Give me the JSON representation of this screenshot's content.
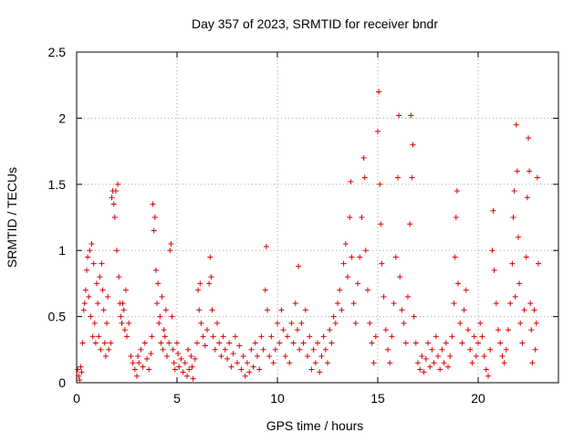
{
  "chart_data": {
    "type": "scatter",
    "title": "Day 357 of 2023, SRMTID for receiver bndr",
    "xlabel": "GPS time / hours",
    "ylabel": "SRMTID / TECUs",
    "xlim": [
      0,
      24
    ],
    "ylim": [
      0,
      2.5
    ],
    "xticks": [
      0,
      5,
      10,
      15,
      20
    ],
    "xtick_labels": [
      "0",
      "5",
      "10",
      "15",
      "20"
    ],
    "yticks": [
      0,
      0.5,
      1,
      1.5,
      2,
      2.5
    ],
    "ytick_labels": [
      "0",
      "0.5",
      "1",
      "1.5",
      "2",
      "2.5"
    ],
    "grid": true,
    "marker": "+",
    "series": [
      {
        "name": "SRMTID",
        "color": "#e00000",
        "points": [
          [
            0.05,
            0.1
          ],
          [
            0.1,
            0.05
          ],
          [
            0.15,
            0.02
          ],
          [
            0.2,
            0.12
          ],
          [
            0.25,
            0.08
          ],
          [
            0.3,
            0.3
          ],
          [
            0.35,
            0.55
          ],
          [
            0.4,
            0.6
          ],
          [
            0.45,
            0.7
          ],
          [
            0.5,
            0.85
          ],
          [
            0.55,
            0.95
          ],
          [
            0.6,
            0.65
          ],
          [
            0.65,
            1.0
          ],
          [
            0.7,
            0.5
          ],
          [
            0.75,
            1.05
          ],
          [
            0.8,
            0.35
          ],
          [
            0.85,
            0.9
          ],
          [
            0.9,
            0.45
          ],
          [
            0.95,
            0.3
          ],
          [
            1.0,
            0.75
          ],
          [
            1.05,
            0.6
          ],
          [
            1.1,
            0.35
          ],
          [
            1.15,
            0.8
          ],
          [
            1.2,
            0.25
          ],
          [
            1.25,
            0.9
          ],
          [
            1.3,
            0.7
          ],
          [
            1.35,
            0.55
          ],
          [
            1.4,
            0.3
          ],
          [
            1.45,
            0.2
          ],
          [
            1.5,
            0.45
          ],
          [
            1.55,
            0.65
          ],
          [
            1.6,
            0.25
          ],
          [
            1.7,
            0.3
          ],
          [
            1.75,
            1.4
          ],
          [
            1.8,
            1.45
          ],
          [
            1.85,
            1.35
          ],
          [
            1.9,
            1.25
          ],
          [
            1.95,
            1.45
          ],
          [
            2.0,
            1.0
          ],
          [
            2.05,
            1.5
          ],
          [
            2.1,
            0.8
          ],
          [
            2.15,
            0.6
          ],
          [
            2.2,
            0.5
          ],
          [
            2.25,
            0.45
          ],
          [
            2.3,
            0.6
          ],
          [
            2.35,
            0.55
          ],
          [
            2.4,
            0.4
          ],
          [
            2.45,
            0.7
          ],
          [
            2.5,
            0.35
          ],
          [
            2.6,
            0.45
          ],
          [
            2.7,
            0.2
          ],
          [
            2.8,
            0.15
          ],
          [
            2.9,
            0.1
          ],
          [
            3.0,
            0.05
          ],
          [
            3.05,
            0.2
          ],
          [
            3.1,
            0.15
          ],
          [
            3.2,
            0.25
          ],
          [
            3.3,
            0.12
          ],
          [
            3.4,
            0.3
          ],
          [
            3.5,
            0.18
          ],
          [
            3.6,
            0.1
          ],
          [
            3.7,
            0.22
          ],
          [
            3.75,
            0.35
          ],
          [
            3.8,
            1.35
          ],
          [
            3.85,
            1.15
          ],
          [
            3.9,
            1.25
          ],
          [
            3.95,
            0.85
          ],
          [
            4.0,
            0.6
          ],
          [
            4.05,
            0.75
          ],
          [
            4.1,
            0.45
          ],
          [
            4.15,
            0.5
          ],
          [
            4.2,
            0.3
          ],
          [
            4.25,
            0.65
          ],
          [
            4.3,
            0.25
          ],
          [
            4.35,
            0.4
          ],
          [
            4.4,
            0.35
          ],
          [
            4.45,
            0.55
          ],
          [
            4.5,
            0.2
          ],
          [
            4.6,
            0.3
          ],
          [
            4.65,
            1.0
          ],
          [
            4.7,
            1.05
          ],
          [
            4.75,
            0.5
          ],
          [
            4.8,
            0.25
          ],
          [
            4.85,
            0.15
          ],
          [
            4.9,
            0.1
          ],
          [
            5.0,
            0.3
          ],
          [
            5.05,
            0.22
          ],
          [
            5.1,
            0.12
          ],
          [
            5.2,
            0.18
          ],
          [
            5.3,
            0.08
          ],
          [
            5.4,
            0.15
          ],
          [
            5.5,
            0.05
          ],
          [
            5.55,
            0.25
          ],
          [
            5.6,
            0.1
          ],
          [
            5.7,
            0.2
          ],
          [
            5.75,
            0.12
          ],
          [
            5.8,
            0.03
          ],
          [
            5.9,
            0.18
          ],
          [
            6.0,
            0.3
          ],
          [
            6.05,
            0.7
          ],
          [
            6.1,
            0.55
          ],
          [
            6.15,
            0.75
          ],
          [
            6.2,
            0.45
          ],
          [
            6.3,
            0.35
          ],
          [
            6.4,
            0.28
          ],
          [
            6.5,
            0.4
          ],
          [
            6.6,
            0.75
          ],
          [
            6.65,
            0.95
          ],
          [
            6.7,
            0.8
          ],
          [
            6.75,
            0.55
          ],
          [
            6.8,
            0.35
          ],
          [
            6.9,
            0.25
          ],
          [
            7.0,
            0.45
          ],
          [
            7.1,
            0.3
          ],
          [
            7.2,
            0.2
          ],
          [
            7.3,
            0.35
          ],
          [
            7.4,
            0.25
          ],
          [
            7.5,
            0.18
          ],
          [
            7.6,
            0.3
          ],
          [
            7.7,
            0.12
          ],
          [
            7.8,
            0.22
          ],
          [
            7.9,
            0.35
          ],
          [
            8.0,
            0.15
          ],
          [
            8.1,
            0.28
          ],
          [
            8.2,
            0.1
          ],
          [
            8.3,
            0.2
          ],
          [
            8.4,
            0.05
          ],
          [
            8.5,
            0.15
          ],
          [
            8.6,
            0.08
          ],
          [
            8.7,
            0.25
          ],
          [
            8.8,
            0.12
          ],
          [
            8.9,
            0.3
          ],
          [
            9.0,
            0.2
          ],
          [
            9.1,
            0.1
          ],
          [
            9.2,
            0.35
          ],
          [
            9.3,
            0.25
          ],
          [
            9.4,
            0.7
          ],
          [
            9.45,
            1.03
          ],
          [
            9.5,
            0.55
          ],
          [
            9.6,
            0.2
          ],
          [
            9.7,
            0.35
          ],
          [
            9.8,
            0.15
          ],
          [
            9.9,
            0.25
          ],
          [
            10.0,
            0.45
          ],
          [
            10.1,
            0.3
          ],
          [
            10.2,
            0.55
          ],
          [
            10.3,
            0.4
          ],
          [
            10.4,
            0.2
          ],
          [
            10.5,
            0.35
          ],
          [
            10.6,
            0.15
          ],
          [
            10.7,
            0.45
          ],
          [
            10.8,
            0.3
          ],
          [
            10.9,
            0.6
          ],
          [
            11.0,
            0.4
          ],
          [
            11.05,
            0.88
          ],
          [
            11.1,
            0.25
          ],
          [
            11.2,
            0.45
          ],
          [
            11.3,
            0.3
          ],
          [
            11.4,
            0.55
          ],
          [
            11.5,
            0.2
          ],
          [
            11.6,
            0.35
          ],
          [
            11.7,
            0.1
          ],
          [
            11.8,
            0.25
          ],
          [
            11.9,
            0.15
          ],
          [
            12.0,
            0.3
          ],
          [
            12.1,
            0.08
          ],
          [
            12.2,
            0.2
          ],
          [
            12.3,
            0.35
          ],
          [
            12.4,
            0.25
          ],
          [
            12.5,
            0.15
          ],
          [
            12.6,
            0.4
          ],
          [
            12.7,
            0.3
          ],
          [
            12.8,
            0.5
          ],
          [
            12.9,
            0.45
          ],
          [
            13.0,
            0.6
          ],
          [
            13.1,
            0.7
          ],
          [
            13.2,
            0.55
          ],
          [
            13.3,
            0.9
          ],
          [
            13.4,
            1.05
          ],
          [
            13.5,
            0.8
          ],
          [
            13.6,
            1.25
          ],
          [
            13.65,
            1.52
          ],
          [
            13.7,
            0.95
          ],
          [
            13.8,
            0.6
          ],
          [
            13.9,
            0.45
          ],
          [
            14.0,
            0.75
          ],
          [
            14.1,
            0.95
          ],
          [
            14.2,
            1.25
          ],
          [
            14.3,
            1.7
          ],
          [
            14.35,
            1.55
          ],
          [
            14.4,
            1.0
          ],
          [
            14.5,
            0.7
          ],
          [
            14.6,
            0.45
          ],
          [
            14.7,
            0.3
          ],
          [
            14.8,
            0.15
          ],
          [
            14.9,
            0.35
          ],
          [
            15.0,
            1.9
          ],
          [
            15.05,
            2.2
          ],
          [
            15.1,
            1.5
          ],
          [
            15.15,
            1.2
          ],
          [
            15.2,
            0.9
          ],
          [
            15.3,
            0.65
          ],
          [
            15.4,
            0.4
          ],
          [
            15.5,
            0.25
          ],
          [
            15.6,
            0.15
          ],
          [
            15.7,
            0.35
          ],
          [
            15.8,
            0.6
          ],
          [
            15.9,
            0.95
          ],
          [
            16.0,
            1.55
          ],
          [
            16.05,
            2.02
          ],
          [
            16.1,
            0.8
          ],
          [
            16.2,
            0.55
          ],
          [
            16.3,
            0.45
          ],
          [
            16.4,
            0.3
          ],
          [
            16.5,
            0.65
          ],
          [
            16.6,
            1.2
          ],
          [
            16.65,
            2.02
          ],
          [
            16.7,
            1.55
          ],
          [
            16.75,
            1.8
          ],
          [
            16.8,
            0.5
          ],
          [
            16.9,
            0.3
          ],
          [
            17.0,
            0.15
          ],
          [
            17.1,
            0.1
          ],
          [
            17.2,
            0.2
          ],
          [
            17.3,
            0.08
          ],
          [
            17.4,
            0.18
          ],
          [
            17.5,
            0.3
          ],
          [
            17.6,
            0.12
          ],
          [
            17.7,
            0.25
          ],
          [
            17.8,
            0.15
          ],
          [
            17.9,
            0.35
          ],
          [
            18.0,
            0.2
          ],
          [
            18.1,
            0.1
          ],
          [
            18.2,
            0.25
          ],
          [
            18.3,
            0.15
          ],
          [
            18.4,
            0.3
          ],
          [
            18.5,
            0.12
          ],
          [
            18.6,
            0.2
          ],
          [
            18.7,
            0.35
          ],
          [
            18.8,
            0.6
          ],
          [
            18.85,
            0.95
          ],
          [
            18.9,
            1.25
          ],
          [
            18.95,
            1.45
          ],
          [
            19.0,
            0.75
          ],
          [
            19.1,
            0.45
          ],
          [
            19.2,
            0.3
          ],
          [
            19.3,
            0.55
          ],
          [
            19.4,
            0.7
          ],
          [
            19.5,
            0.4
          ],
          [
            19.6,
            0.25
          ],
          [
            19.7,
            0.15
          ],
          [
            19.8,
            0.35
          ],
          [
            19.9,
            0.2
          ],
          [
            20.0,
            0.3
          ],
          [
            20.1,
            0.45
          ],
          [
            20.2,
            0.35
          ],
          [
            20.3,
            0.2
          ],
          [
            20.4,
            0.1
          ],
          [
            20.5,
            0.05
          ],
          [
            20.6,
            0.25
          ],
          [
            20.7,
            1.0
          ],
          [
            20.75,
            1.3
          ],
          [
            20.8,
            0.85
          ],
          [
            20.9,
            0.6
          ],
          [
            21.0,
            0.4
          ],
          [
            21.1,
            0.3
          ],
          [
            21.2,
            0.2
          ],
          [
            21.3,
            0.15
          ],
          [
            21.4,
            0.25
          ],
          [
            21.5,
            0.4
          ],
          [
            21.6,
            0.6
          ],
          [
            21.7,
            0.9
          ],
          [
            21.75,
            1.25
          ],
          [
            21.8,
            1.45
          ],
          [
            21.85,
            0.65
          ],
          [
            21.9,
            1.95
          ],
          [
            21.95,
            1.6
          ],
          [
            22.0,
            1.1
          ],
          [
            22.05,
            0.75
          ],
          [
            22.1,
            0.45
          ],
          [
            22.2,
            0.3
          ],
          [
            22.3,
            0.55
          ],
          [
            22.4,
            0.95
          ],
          [
            22.45,
            1.4
          ],
          [
            22.5,
            1.85
          ],
          [
            22.55,
            1.6
          ],
          [
            22.6,
            0.6
          ],
          [
            22.65,
            0.4
          ],
          [
            22.7,
            0.15
          ],
          [
            22.8,
            0.55
          ],
          [
            22.85,
            0.25
          ],
          [
            22.9,
            0.45
          ],
          [
            22.95,
            1.55
          ],
          [
            23.0,
            0.9
          ]
        ]
      }
    ]
  }
}
